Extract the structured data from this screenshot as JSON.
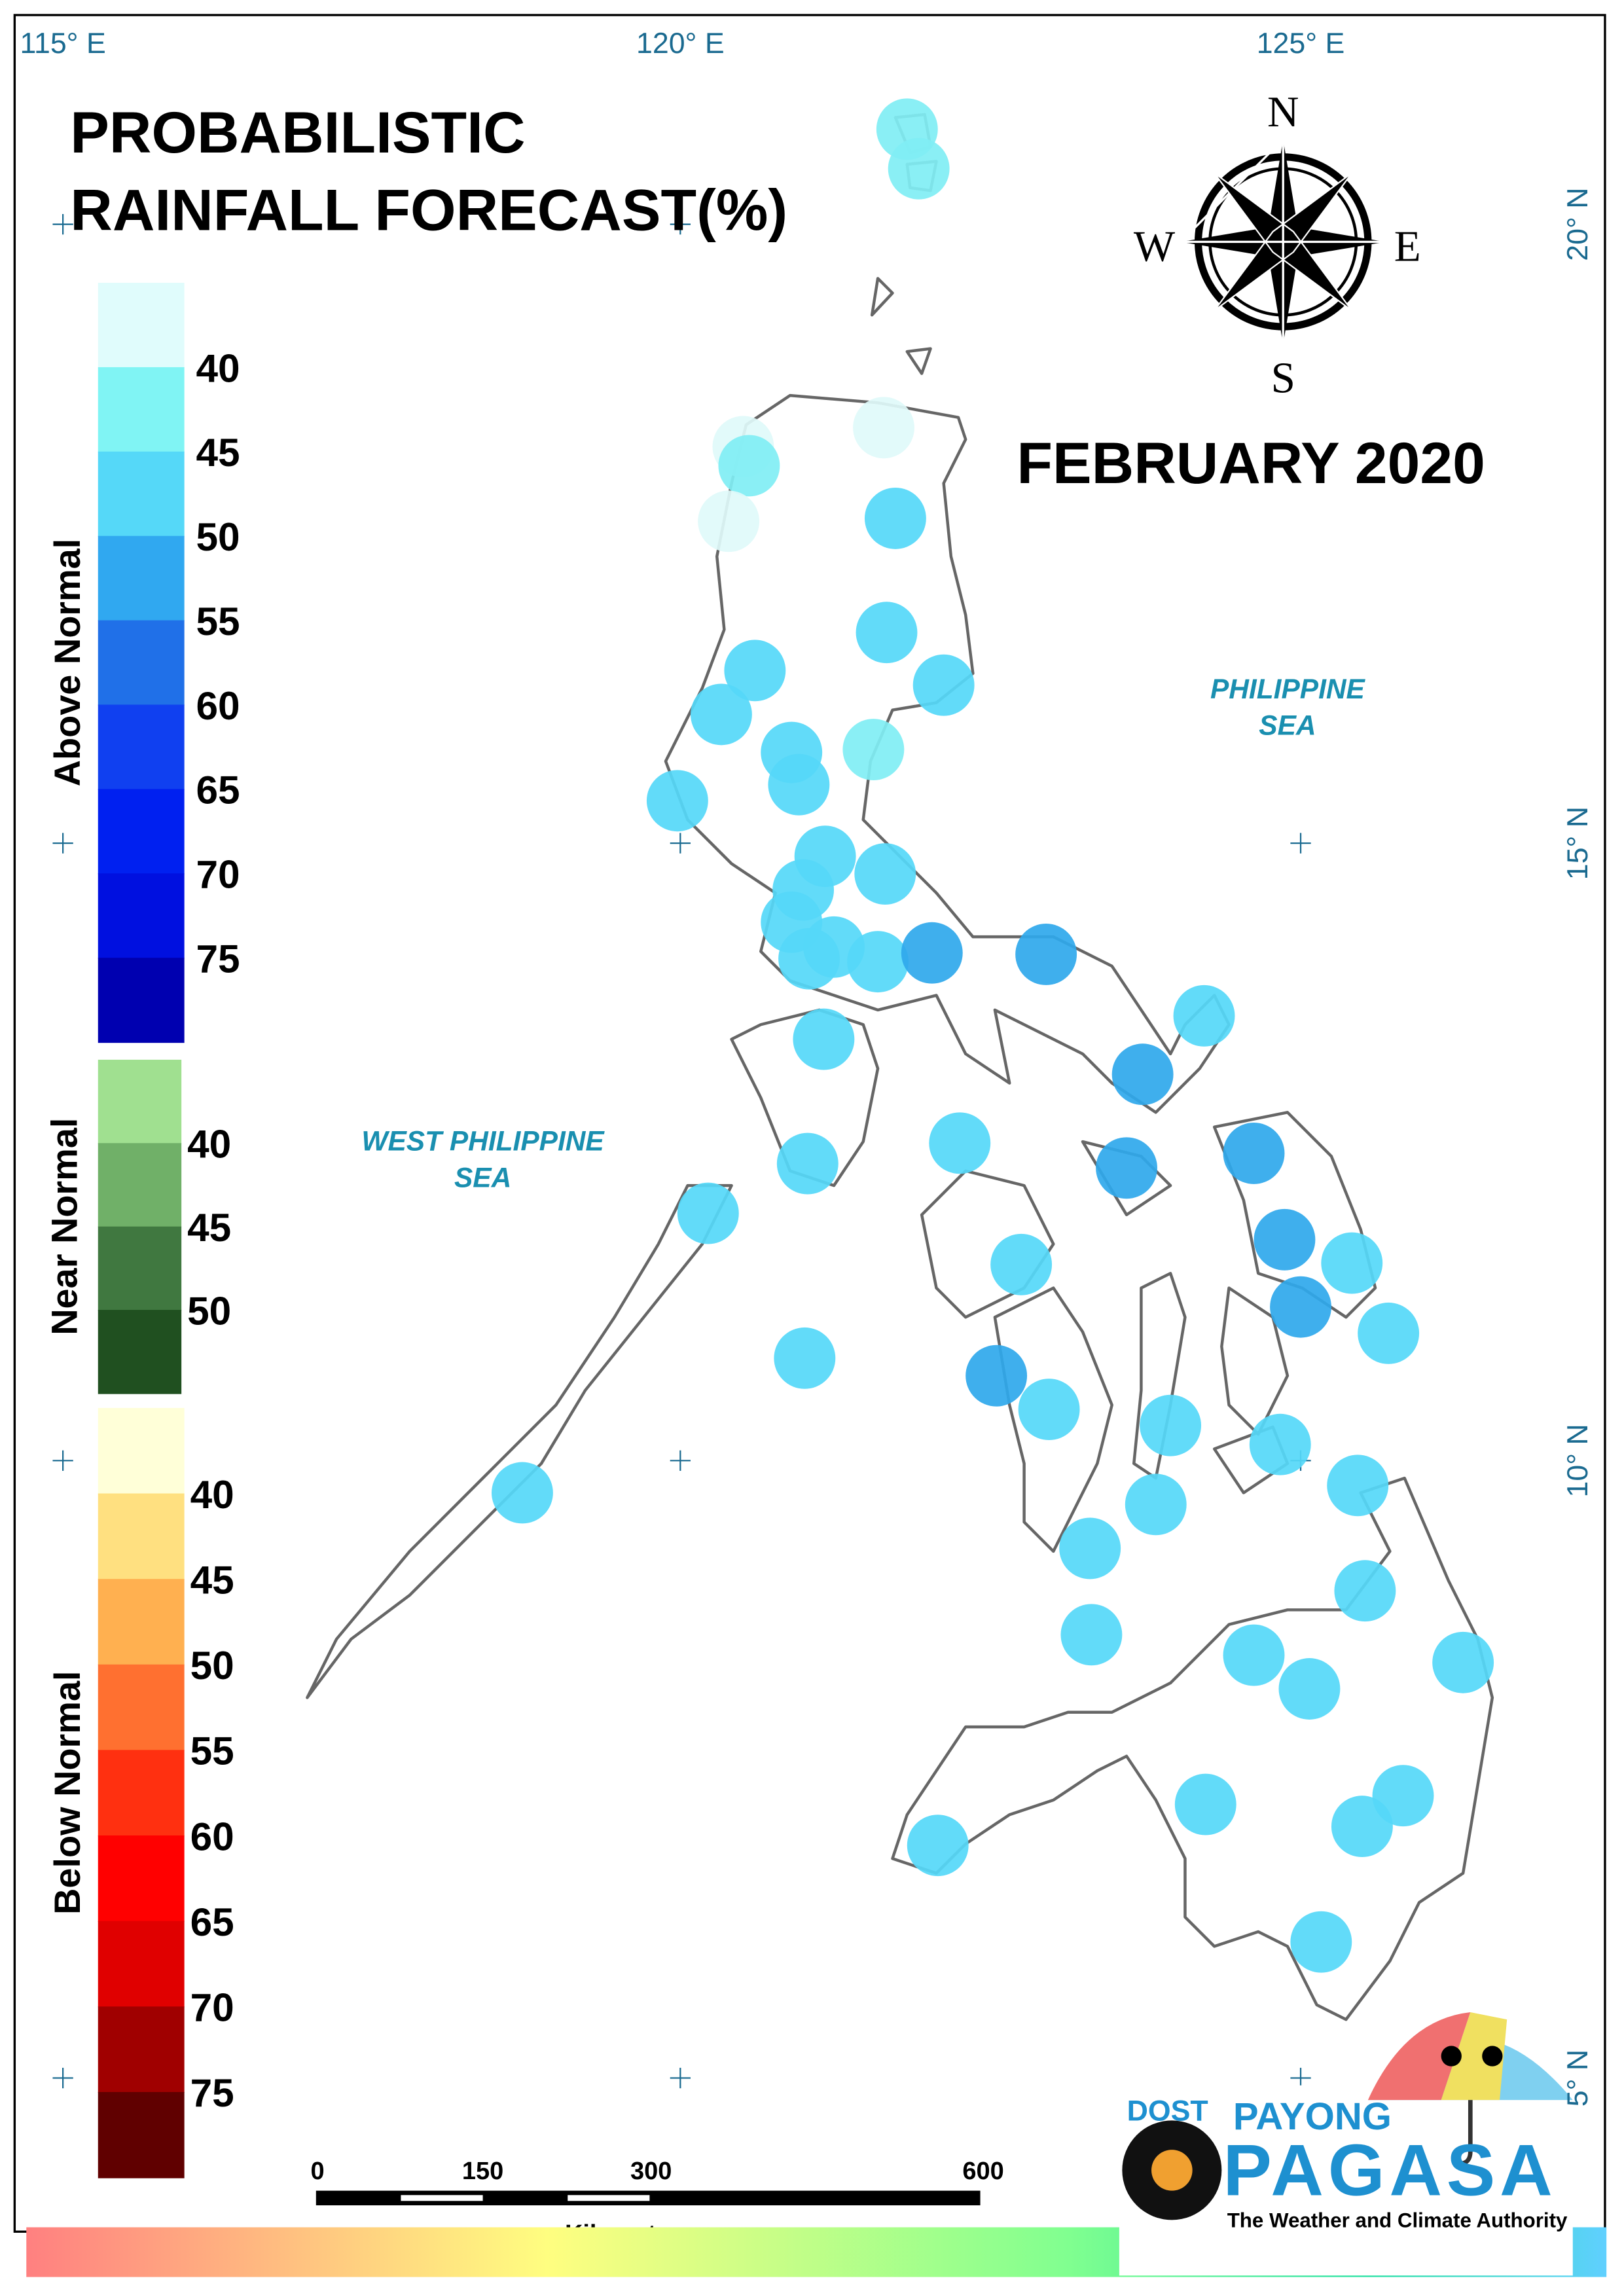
{
  "title": [
    "PROBABILISTIC",
    "RAINFALL FORECAST(%)"
  ],
  "period": "FEBRUARY  2020",
  "compass": {
    "n": "N",
    "e": "E",
    "s": "S",
    "w": "W"
  },
  "longitude_labels": [
    "115° E",
    "120° E",
    "125° E"
  ],
  "latitude_labels": [
    "20° N",
    "15° N",
    "10° N",
    "5° N"
  ],
  "seas": [
    [
      "PHILIPPINE",
      "SEA"
    ],
    [
      "WEST PHILIPPINE",
      "SEA"
    ]
  ],
  "legend": {
    "above": {
      "title": "Above Normal",
      "labels": [
        "40",
        "45",
        "50",
        "55",
        "60",
        "65",
        "70",
        "75"
      ]
    },
    "near": {
      "title": "Near Normal",
      "labels": [
        "40",
        "45",
        "50"
      ]
    },
    "below": {
      "title": "Below Normal",
      "labels": [
        "40",
        "45",
        "50",
        "55",
        "60",
        "65",
        "70",
        "75"
      ]
    }
  },
  "scale_bar": {
    "labels": [
      "0",
      "150",
      "300",
      "600"
    ],
    "unit": "Kilometers"
  },
  "logo": {
    "dost": "DOST",
    "payong": "PAYONG",
    "pagasa": "PAGASA",
    "tagline": "The Weather and Climate Authority"
  }
}
